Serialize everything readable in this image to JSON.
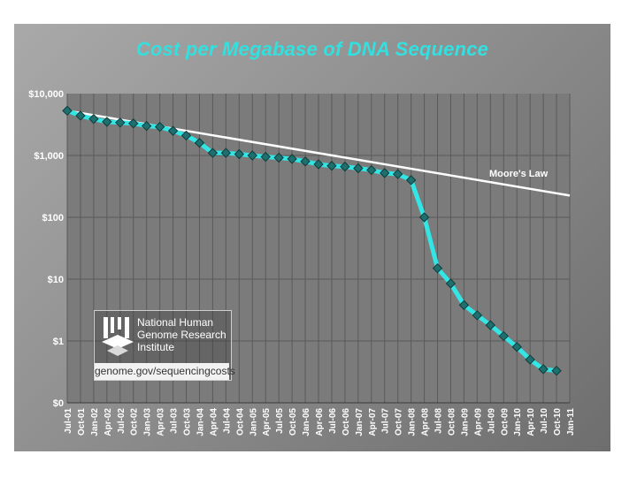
{
  "chart_data": {
    "type": "line",
    "title": "Cost per Megabase of DNA Sequence",
    "xlabel": "",
    "ylabel": "",
    "y_scale": "log",
    "y_tick_labels": [
      "$10,000",
      "$1,000",
      "$100",
      "$10",
      "$1",
      "$0"
    ],
    "x_tick_labels": [
      "Jul-01",
      "Oct-01",
      "Jan-02",
      "Apr-02",
      "Jul-02",
      "Oct-02",
      "Jan-03",
      "Apr-03",
      "Jul-03",
      "Oct-03",
      "Jan-04",
      "Apr-04",
      "Jul-04",
      "Oct-04",
      "Jan-05",
      "Apr-05",
      "Jul-05",
      "Oct-05",
      "Jan-06",
      "Apr-06",
      "Jul-06",
      "Oct-06",
      "Jan-07",
      "Apr-07",
      "Jul-07",
      "Oct-07",
      "Jan-08",
      "Apr-08",
      "Jul-08",
      "Oct-08",
      "Jan-09",
      "Apr-09",
      "Jul-09",
      "Oct-09",
      "Jan-10",
      "Apr-10",
      "Jul-10",
      "Oct-10",
      "Jan-11"
    ],
    "grid": true,
    "series": [
      {
        "name": "",
        "color": "#33e6e6",
        "x": [
          "Jul-01",
          "Oct-01",
          "Jan-02",
          "Apr-02",
          "Jul-02",
          "Oct-02",
          "Jan-03",
          "Apr-03",
          "Jul-03",
          "Oct-03",
          "Jan-04",
          "Apr-04",
          "Jul-04",
          "Oct-04",
          "Jan-05",
          "Apr-05",
          "Jul-05",
          "Oct-05",
          "Jan-06",
          "Apr-06",
          "Jul-06",
          "Oct-06",
          "Jan-07",
          "Apr-07",
          "Jul-07",
          "Oct-07",
          "Jan-08",
          "Apr-08",
          "Jul-08",
          "Oct-08",
          "Jan-09",
          "Apr-09",
          "Jul-09",
          "Oct-09",
          "Jan-10",
          "Apr-10",
          "Jul-10",
          "Oct-10"
        ],
        "values": [
          5292,
          4400,
          3900,
          3500,
          3400,
          3300,
          3000,
          2900,
          2500,
          2100,
          1600,
          1100,
          1100,
          1050,
          1000,
          950,
          920,
          880,
          800,
          720,
          680,
          660,
          620,
          580,
          520,
          500,
          400,
          100,
          15,
          8.5,
          3.8,
          2.6,
          1.8,
          1.2,
          0.8,
          0.5,
          0.35,
          0.33
        ]
      },
      {
        "name": "Moore's Law",
        "color": "#ffffff",
        "x": [
          "Jul-01",
          "Jan-11"
        ],
        "values": [
          5292,
          225
        ]
      }
    ],
    "annotations": [
      {
        "text": "Moore's Law"
      }
    ]
  },
  "logo": {
    "lines": [
      "National Human",
      "Genome Research",
      "Institute"
    ],
    "url": "genome.gov/sequencingcosts"
  }
}
